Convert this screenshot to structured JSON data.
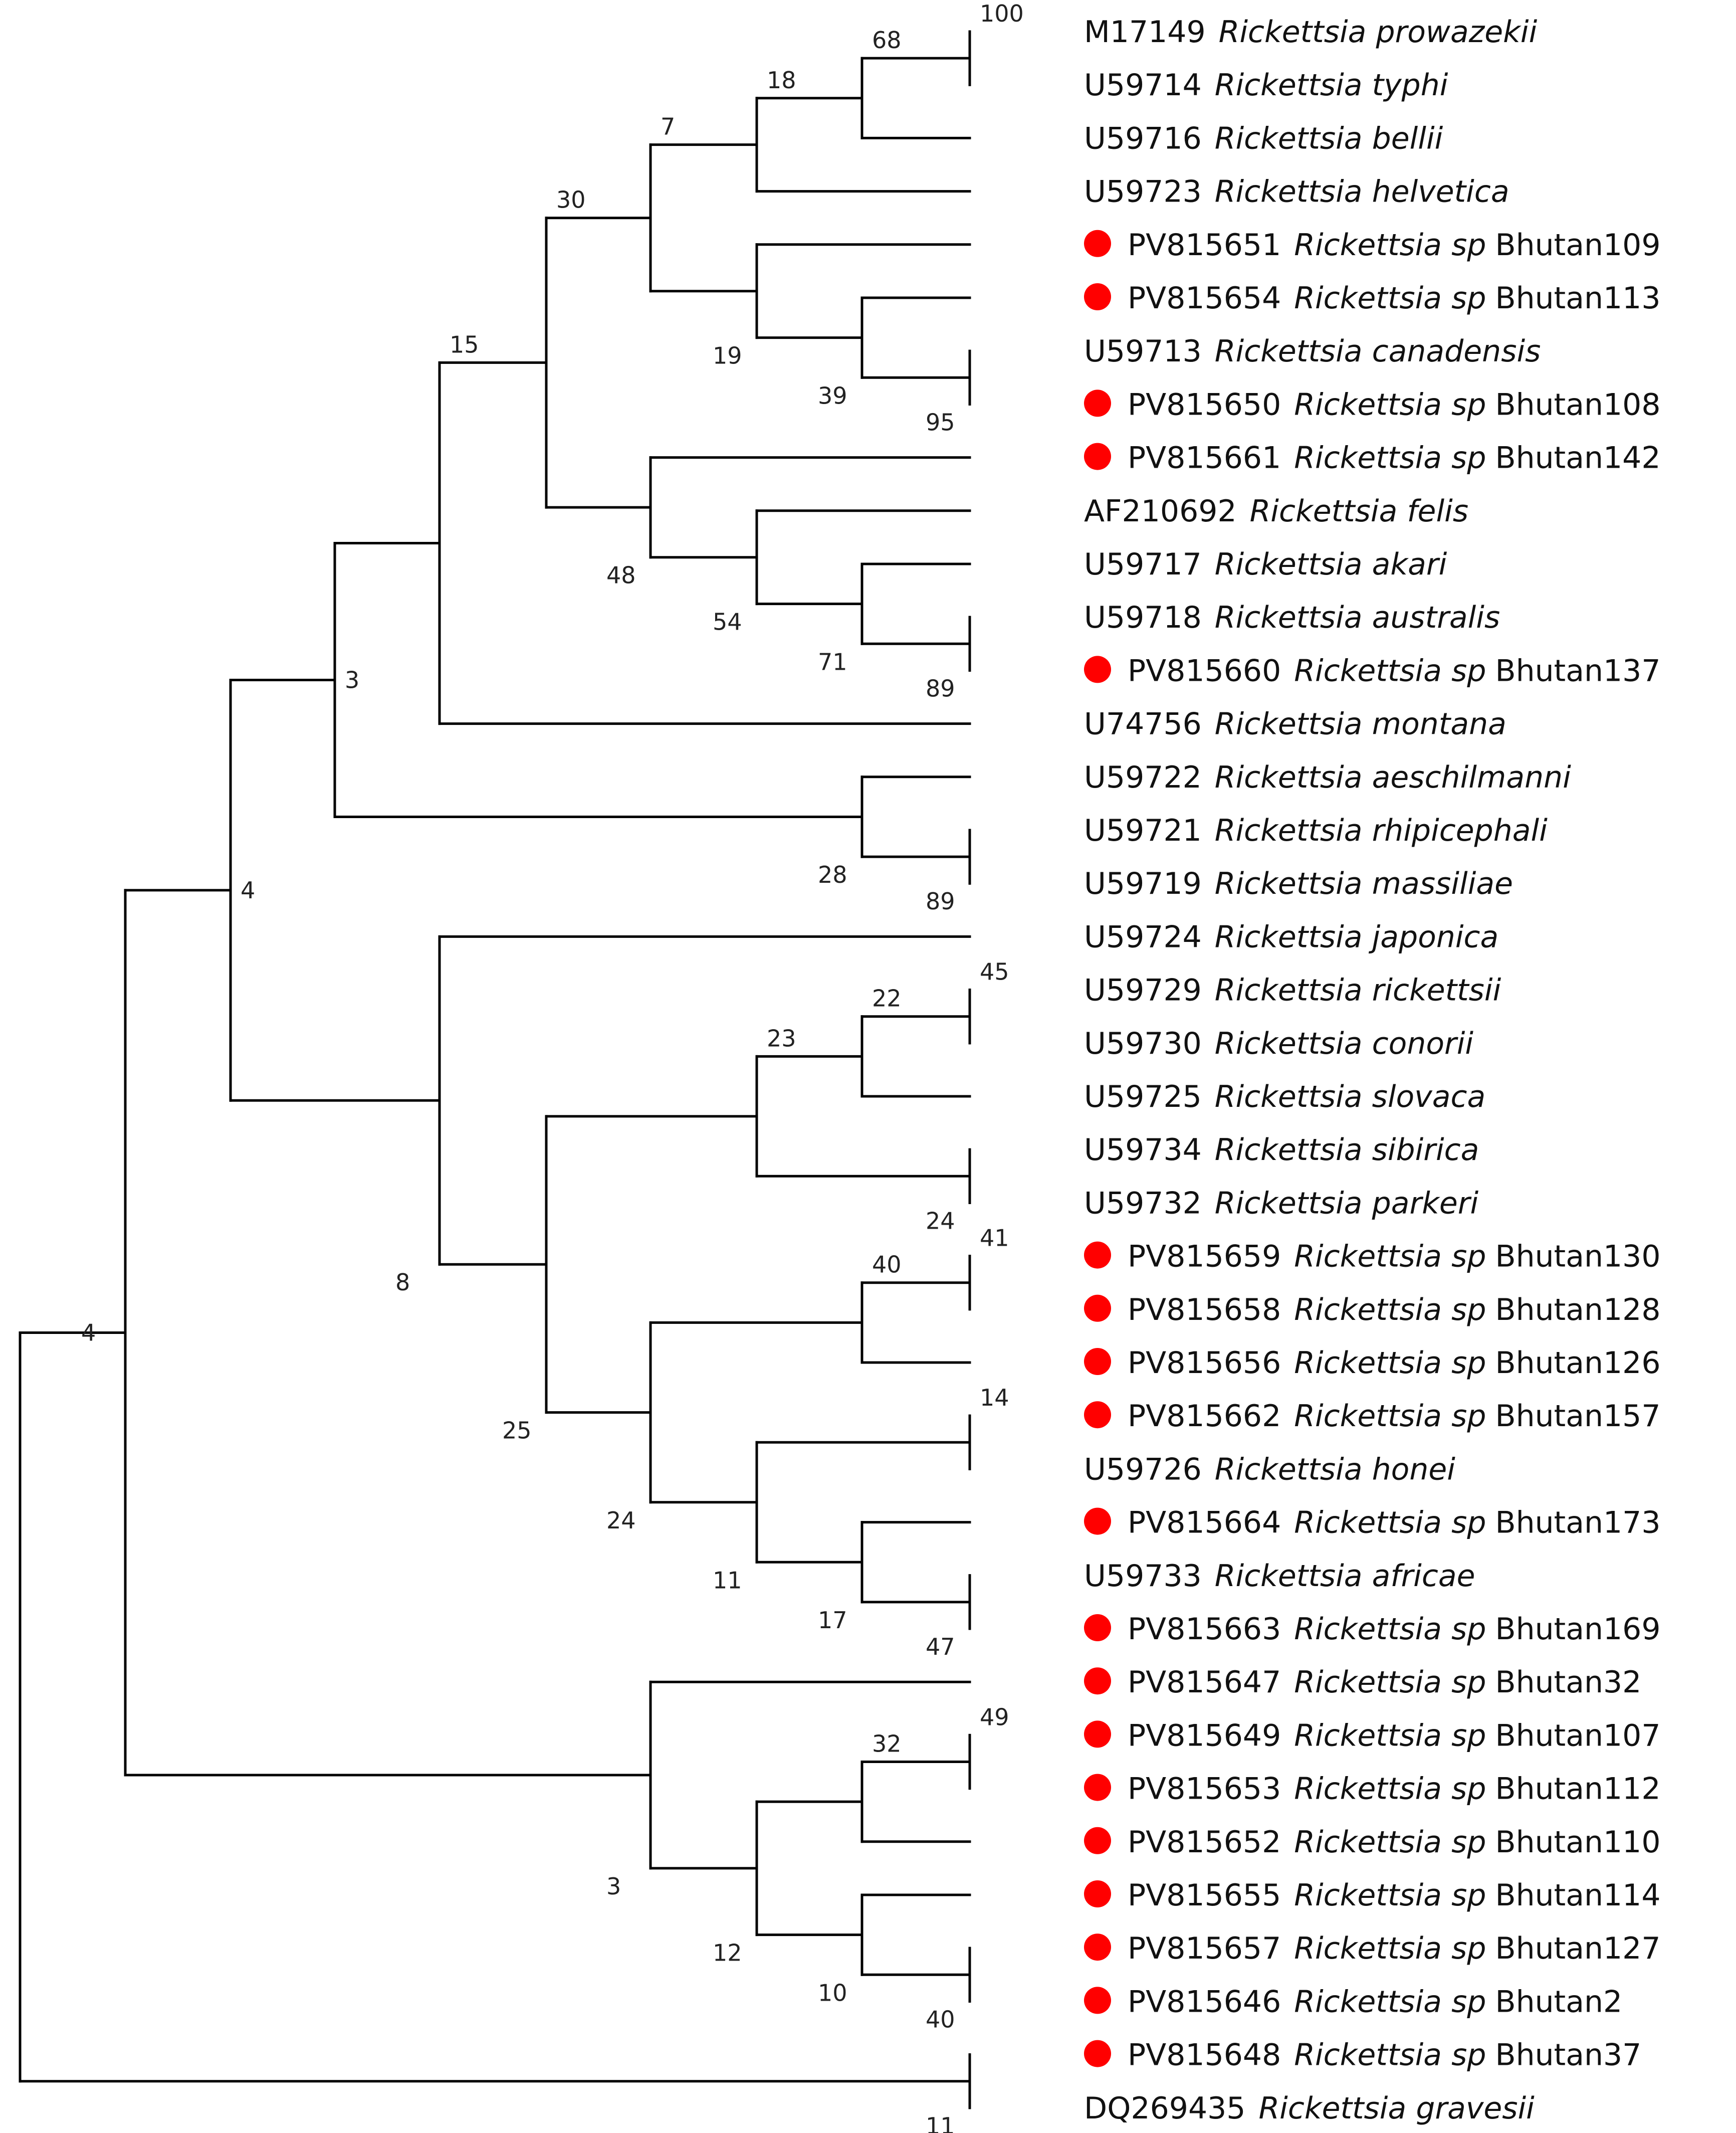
{
  "figure": {
    "type": "phylogenetic_tree",
    "marker_color": "#ff0000",
    "marker_meaning": "Bhutan sample sequence"
  },
  "taxa": [
    {
      "accession": "M17149",
      "species": "Rickettsia prowazekii",
      "strain": "",
      "marked": false
    },
    {
      "accession": "U59714",
      "species": "Rickettsia typhi",
      "strain": "",
      "marked": false
    },
    {
      "accession": "U59716",
      "species": "Rickettsia bellii",
      "strain": "",
      "marked": false
    },
    {
      "accession": "U59723",
      "species": "Rickettsia helvetica",
      "strain": "",
      "marked": false
    },
    {
      "accession": "PV815651",
      "species": "Rickettsia sp",
      "strain": "Bhutan109",
      "marked": true
    },
    {
      "accession": "PV815654",
      "species": "Rickettsia sp",
      "strain": "Bhutan113",
      "marked": true
    },
    {
      "accession": "U59713",
      "species": "Rickettsia canadensis",
      "strain": "",
      "marked": false
    },
    {
      "accession": "PV815650",
      "species": "Rickettsia sp",
      "strain": "Bhutan108",
      "marked": true
    },
    {
      "accession": "PV815661",
      "species": "Rickettsia sp",
      "strain": "Bhutan142",
      "marked": true
    },
    {
      "accession": "AF210692",
      "species": "Rickettsia felis",
      "strain": "",
      "marked": false
    },
    {
      "accession": "U59717",
      "species": "Rickettsia akari",
      "strain": "",
      "marked": false
    },
    {
      "accession": "U59718",
      "species": "Rickettsia australis",
      "strain": "",
      "marked": false
    },
    {
      "accession": "PV815660",
      "species": "Rickettsia sp",
      "strain": "Bhutan137",
      "marked": true
    },
    {
      "accession": "U74756",
      "species": "Rickettsia montana",
      "strain": "",
      "marked": false
    },
    {
      "accession": "U59722",
      "species": "Rickettsia aeschilmanni",
      "strain": "",
      "marked": false
    },
    {
      "accession": "U59721",
      "species": "Rickettsia rhipicephali",
      "strain": "",
      "marked": false
    },
    {
      "accession": "U59719",
      "species": "Rickettsia massiliae",
      "strain": "",
      "marked": false
    },
    {
      "accession": "U59724",
      "species": "Rickettsia japonica",
      "strain": "",
      "marked": false
    },
    {
      "accession": "U59729",
      "species": "Rickettsia rickettsii",
      "strain": "",
      "marked": false
    },
    {
      "accession": "U59730",
      "species": "Rickettsia conorii",
      "strain": "",
      "marked": false
    },
    {
      "accession": "U59725",
      "species": "Rickettsia slovaca",
      "strain": "",
      "marked": false
    },
    {
      "accession": "U59734",
      "species": "Rickettsia sibirica",
      "strain": "",
      "marked": false
    },
    {
      "accession": "U59732",
      "species": "Rickettsia parkeri",
      "strain": "",
      "marked": false
    },
    {
      "accession": "PV815659",
      "species": "Rickettsia sp",
      "strain": "Bhutan130",
      "marked": true
    },
    {
      "accession": "PV815658",
      "species": "Rickettsia sp",
      "strain": "Bhutan128",
      "marked": true
    },
    {
      "accession": "PV815656",
      "species": "Rickettsia sp",
      "strain": "Bhutan126",
      "marked": true
    },
    {
      "accession": "PV815662",
      "species": "Rickettsia sp",
      "strain": "Bhutan157",
      "marked": true
    },
    {
      "accession": "U59726",
      "species": "Rickettsia honei",
      "strain": "",
      "marked": false
    },
    {
      "accession": "PV815664",
      "species": "Rickettsia sp",
      "strain": "Bhutan173",
      "marked": true
    },
    {
      "accession": "U59733",
      "species": "Rickettsia africae",
      "strain": "",
      "marked": false
    },
    {
      "accession": "PV815663",
      "species": "Rickettsia sp",
      "strain": "Bhutan169",
      "marked": true
    },
    {
      "accession": "PV815647",
      "species": "Rickettsia sp",
      "strain": "Bhutan32",
      "marked": true
    },
    {
      "accession": "PV815649",
      "species": "Rickettsia sp",
      "strain": "Bhutan107",
      "marked": true
    },
    {
      "accession": "PV815653",
      "species": "Rickettsia sp",
      "strain": "Bhutan112",
      "marked": true
    },
    {
      "accession": "PV815652",
      "species": "Rickettsia sp",
      "strain": "Bhutan110",
      "marked": true
    },
    {
      "accession": "PV815655",
      "species": "Rickettsia sp",
      "strain": "Bhutan114",
      "marked": true
    },
    {
      "accession": "PV815657",
      "species": "Rickettsia sp",
      "strain": "Bhutan127",
      "marked": true
    },
    {
      "accession": "PV815646",
      "species": "Rickettsia sp",
      "strain": "Bhutan2",
      "marked": true
    },
    {
      "accession": "PV815648",
      "species": "Rickettsia sp",
      "strain": "Bhutan37",
      "marked": true
    },
    {
      "accession": "DQ269435",
      "species": "Rickettsia gravesii",
      "strain": "",
      "marked": false
    }
  ],
  "clades": [
    {
      "id": "n_pro_typ",
      "children": [
        0,
        1
      ],
      "bootstrap": "100"
    },
    {
      "id": "n_typhus",
      "children": [
        "n_pro_typ",
        2
      ],
      "bootstrap": "68"
    },
    {
      "id": "n_hel",
      "children": [
        "n_typhus",
        3
      ],
      "bootstrap": "18"
    },
    {
      "id": "n_can_108",
      "children": [
        6,
        7
      ],
      "bootstrap": "95"
    },
    {
      "id": "n_113",
      "children": [
        5,
        "n_can_108"
      ],
      "bootstrap": "39"
    },
    {
      "id": "n_109",
      "children": [
        4,
        "n_113"
      ],
      "bootstrap": "19"
    },
    {
      "id": "n_A",
      "children": [
        "n_hel",
        "n_109"
      ],
      "bootstrap": "7"
    },
    {
      "id": "n_aus_137",
      "children": [
        11,
        12
      ],
      "bootstrap": "89"
    },
    {
      "id": "n_akari",
      "children": [
        10,
        "n_aus_137"
      ],
      "bootstrap": "71"
    },
    {
      "id": "n_felis",
      "children": [
        9,
        "n_akari"
      ],
      "bootstrap": "54"
    },
    {
      "id": "n_142",
      "children": [
        8,
        "n_felis"
      ],
      "bootstrap": "48"
    },
    {
      "id": "n_B",
      "children": [
        "n_A",
        "n_142"
      ],
      "bootstrap": "30"
    },
    {
      "id": "n_montana",
      "children": [
        "n_B",
        13
      ],
      "bootstrap": "15"
    },
    {
      "id": "n_rhi_mas",
      "children": [
        15,
        16
      ],
      "bootstrap": "89"
    },
    {
      "id": "n_aes",
      "children": [
        14,
        "n_rhi_mas"
      ],
      "bootstrap": "28"
    },
    {
      "id": "n_upper",
      "children": [
        "n_montana",
        "n_aes"
      ],
      "bootstrap": "3"
    },
    {
      "id": "n_ric_con",
      "children": [
        18,
        19
      ],
      "bootstrap": "45"
    },
    {
      "id": "n_slo",
      "children": [
        "n_ric_con",
        20
      ],
      "bootstrap": "22"
    },
    {
      "id": "n_sib_par",
      "children": [
        21,
        22
      ],
      "bootstrap": "24"
    },
    {
      "id": "n_sfg1",
      "children": [
        "n_slo",
        "n_sib_par"
      ],
      "bootstrap": "23"
    },
    {
      "id": "n_130_128",
      "children": [
        23,
        24
      ],
      "bootstrap": "41"
    },
    {
      "id": "n_126",
      "children": [
        "n_130_128",
        25
      ],
      "bootstrap": "40"
    },
    {
      "id": "n_157_hon",
      "children": [
        26,
        27
      ],
      "bootstrap": "14"
    },
    {
      "id": "n_afr_169",
      "children": [
        29,
        30
      ],
      "bootstrap": "47"
    },
    {
      "id": "n_173",
      "children": [
        28,
        "n_afr_169"
      ],
      "bootstrap": "17"
    },
    {
      "id": "n_honei_grp",
      "children": [
        "n_157_hon",
        "n_173"
      ],
      "bootstrap": "11"
    },
    {
      "id": "n_bhutan_sfg",
      "children": [
        "n_126",
        "n_honei_grp"
      ],
      "bootstrap": "24"
    },
    {
      "id": "n_sfg",
      "children": [
        "n_sfg1",
        "n_bhutan_sfg"
      ],
      "bootstrap": "25"
    },
    {
      "id": "n_japonica",
      "children": [
        17,
        "n_sfg"
      ],
      "bootstrap": "8"
    },
    {
      "id": "n_main",
      "children": [
        "n_upper",
        "n_japonica"
      ],
      "bootstrap": "4"
    },
    {
      "id": "n_107_112",
      "children": [
        32,
        33
      ],
      "bootstrap": "49"
    },
    {
      "id": "n_110",
      "children": [
        "n_107_112",
        34
      ],
      "bootstrap": "32"
    },
    {
      "id": "n_127_2",
      "children": [
        36,
        37
      ],
      "bootstrap": "40"
    },
    {
      "id": "n_114",
      "children": [
        35,
        "n_127_2"
      ],
      "bootstrap": "10"
    },
    {
      "id": "n_bhutan_a",
      "children": [
        "n_110",
        "n_114"
      ],
      "bootstrap": "12"
    },
    {
      "id": "n_bhutan_b",
      "children": [
        31,
        "n_bhutan_a"
      ],
      "bootstrap": "3"
    },
    {
      "id": "n_core",
      "children": [
        "n_main",
        "n_bhutan_b"
      ],
      "bootstrap": "4"
    },
    {
      "id": "n_gravesii",
      "children": [
        38,
        39
      ],
      "bootstrap": "11"
    },
    {
      "id": "n_root",
      "children": [
        "n_core",
        "n_gravesii"
      ],
      "bootstrap": ""
    }
  ]
}
